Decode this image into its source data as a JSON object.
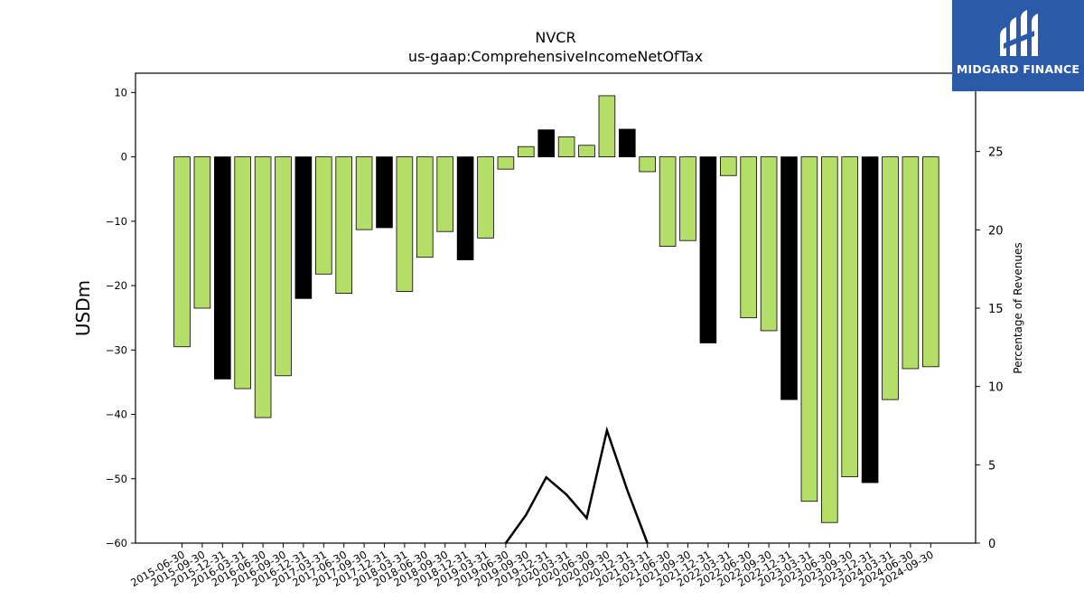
{
  "chart_data": {
    "type": "bar",
    "title": "NVCR",
    "subtitle": "us-gaap:ComprehensiveIncomeNetOfTax",
    "ylabel": "USDm",
    "y2label": "Percentage of Revenues",
    "ylim": [
      -60,
      13
    ],
    "y2lim": [
      0,
      30
    ],
    "yticks": [
      10,
      0,
      -10,
      -20,
      -30,
      -40,
      -50,
      -60
    ],
    "y2ticks": [
      0,
      5,
      10,
      15,
      20,
      25
    ],
    "categories": [
      "2015-06-30",
      "2015-09-30",
      "2015-12-31",
      "2016-03-31",
      "2016-06-30",
      "2016-09-30",
      "2016-12-31",
      "2017-03-31",
      "2017-06-30",
      "2017-09-30",
      "2017-12-31",
      "2018-03-31",
      "2018-06-30",
      "2018-09-30",
      "2018-12-31",
      "2019-03-31",
      "2019-06-30",
      "2019-09-30",
      "2019-12-31",
      "2020-03-31",
      "2020-06-30",
      "2020-09-30",
      "2020-12-31",
      "2021-03-31",
      "2021-06-30",
      "2021-09-30",
      "2021-12-31",
      "2022-03-31",
      "2022-06-30",
      "2022-09-30",
      "2022-12-31",
      "2023-03-31",
      "2023-06-30",
      "2023-09-30",
      "2023-12-31",
      "2024-03-31",
      "2024-06-30",
      "2024-09-30"
    ],
    "values": [
      -29.5,
      -23.5,
      -34.5,
      -36,
      -40.5,
      -34,
      -22,
      -18.2,
      -21.2,
      -11.3,
      -11,
      -20.9,
      -15.6,
      -11.6,
      -16,
      -12.6,
      -1.9,
      1.6,
      4.2,
      3.1,
      1.8,
      9.5,
      4.3,
      -2.3,
      -13.9,
      -13,
      -28.9,
      -2.9,
      -25,
      -27,
      -37.7,
      -53.5,
      -56.8,
      -49.7,
      -50.6,
      -37.7,
      -32.9,
      -32.6
    ],
    "colors": [
      "#b5de68",
      "#b5de68",
      "#000000",
      "#b5de68",
      "#b5de68",
      "#b5de68",
      "#000000",
      "#b5de68",
      "#b5de68",
      "#b5de68",
      "#000000",
      "#b5de68",
      "#b5de68",
      "#b5de68",
      "#000000",
      "#b5de68",
      "#b5de68",
      "#b5de68",
      "#000000",
      "#b5de68",
      "#b5de68",
      "#b5de68",
      "#000000",
      "#b5de68",
      "#b5de68",
      "#b5de68",
      "#000000",
      "#b5de68",
      "#b5de68",
      "#b5de68",
      "#000000",
      "#b5de68",
      "#b5de68",
      "#b5de68",
      "#000000",
      "#b5de68",
      "#b5de68",
      "#b5de68"
    ],
    "line_series": {
      "axis": "right",
      "color": "#000000",
      "points": [
        {
          "category": "2019-06-30",
          "value": 0
        },
        {
          "category": "2019-09-30",
          "value": 1.8
        },
        {
          "category": "2019-12-31",
          "value": 4.2
        },
        {
          "category": "2020-03-31",
          "value": 3.1
        },
        {
          "category": "2020-06-30",
          "value": 1.6
        },
        {
          "category": "2020-09-30",
          "value": 7.2
        },
        {
          "category": "2020-12-31",
          "value": 3.4
        },
        {
          "category": "2021-03-31",
          "value": 0
        }
      ]
    },
    "grid": false,
    "legend": "none"
  },
  "logo": {
    "text": "MIDGARD FINANCE",
    "icon": "midgard-m-icon",
    "background": "#2b5aa8"
  }
}
